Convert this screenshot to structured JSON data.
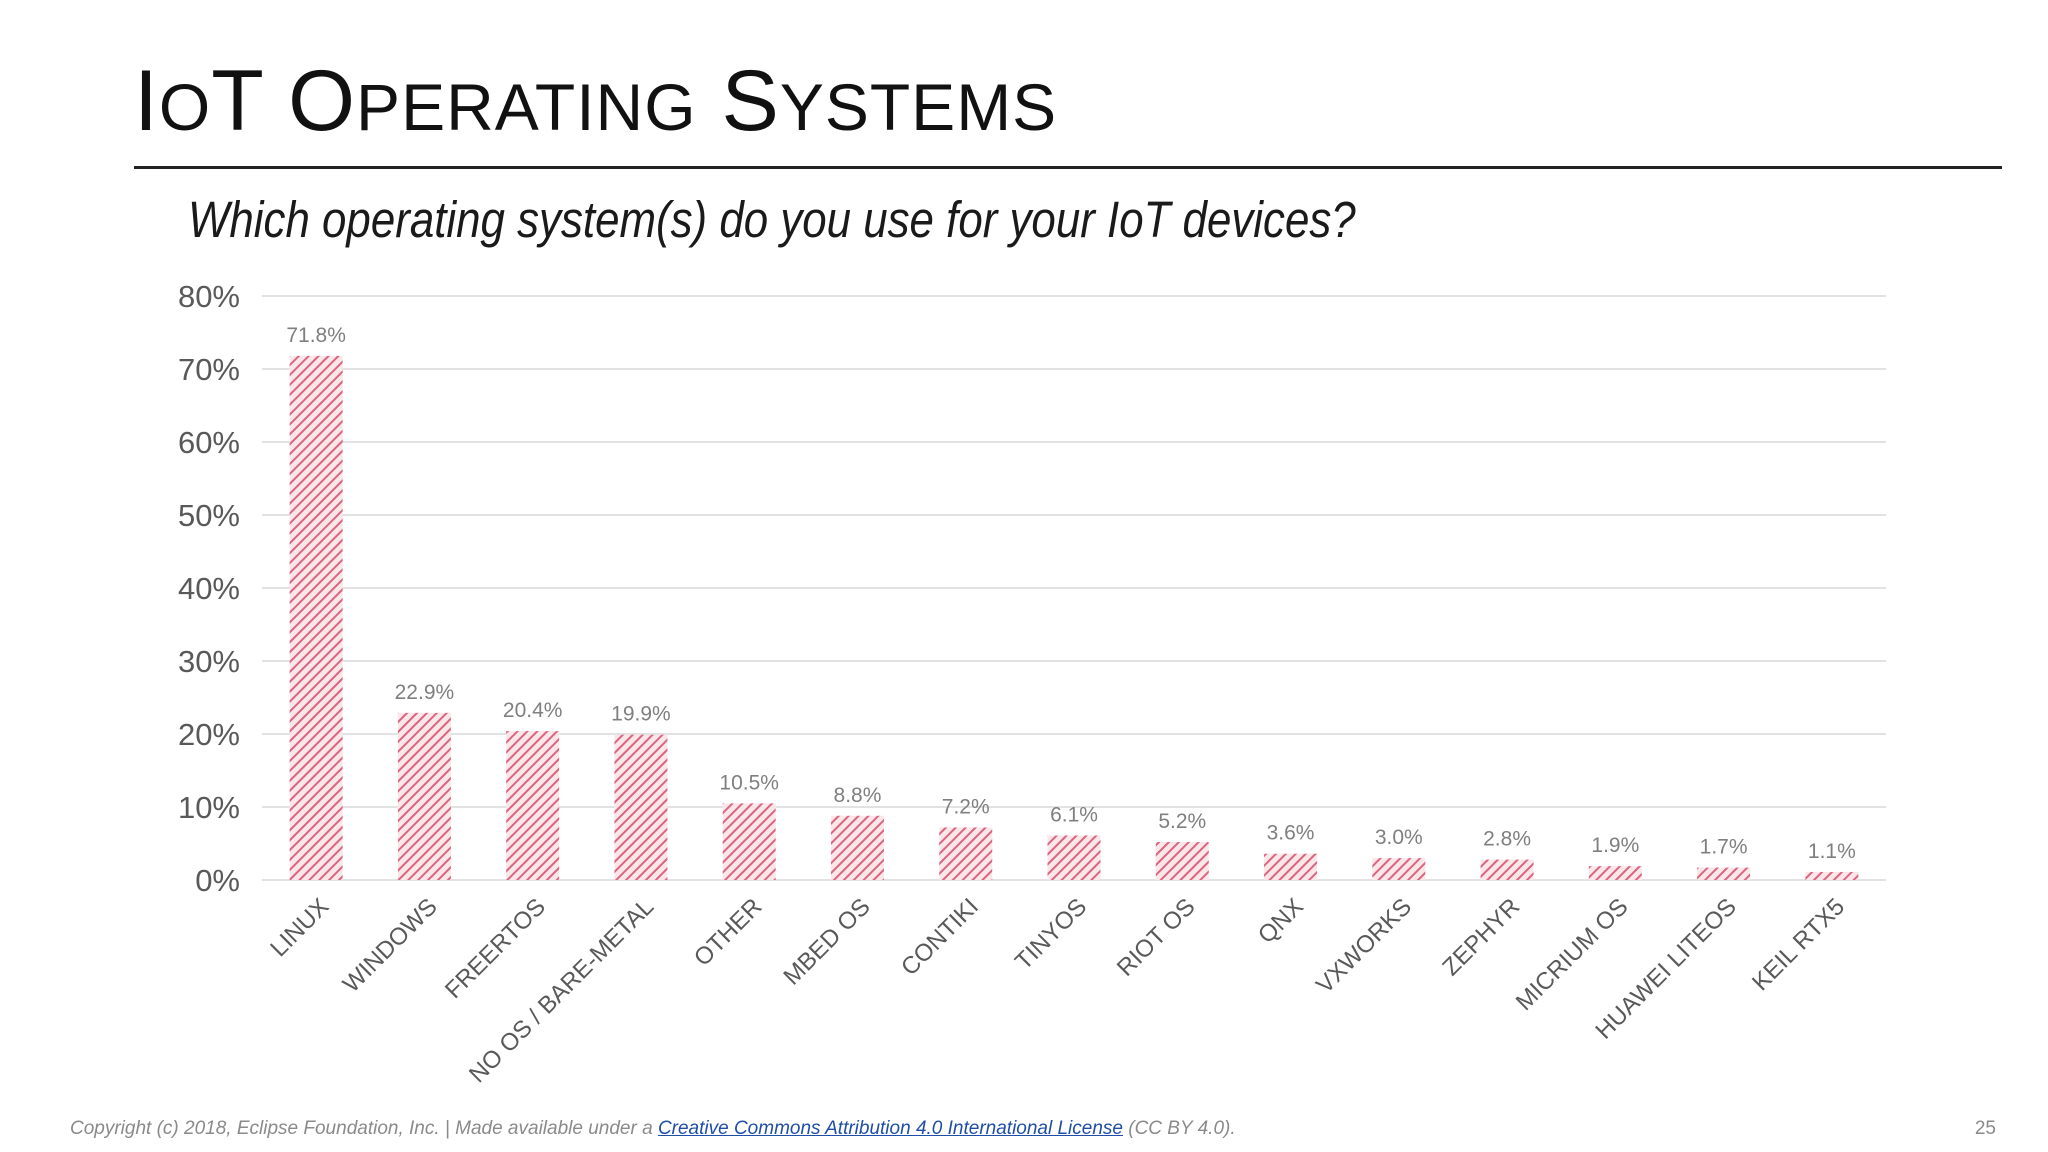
{
  "slide": {
    "title_first": "I",
    "title_first_rest": "O",
    "title_first_tail": "T",
    "title_second": "O",
    "title_second_rest": "PERATING",
    "title_third": "S",
    "title_third_rest": "YSTEMS"
  },
  "question": "Which operating system(s) do you use for your IoT devices?",
  "footer": {
    "prefix": "Copyright (c) 2018, Eclipse Foundation, Inc. | Made available under a ",
    "link_text": "Creative Commons Attribution 4.0 International License",
    "suffix": " (CC BY 4.0).",
    "page_number": "25"
  },
  "colors": {
    "bar_stroke": "#d9667e",
    "bar_fill_light": "#fbe6ea",
    "grid": "#d9d9d9",
    "axis_text": "#595959",
    "data_label": "#7f7f7f"
  },
  "chart_data": {
    "type": "bar",
    "title": "Which operating system(s) do you use for your IoT devices?",
    "categories": [
      "LINUX",
      "WINDOWS",
      "FREERTOS",
      "NO OS / BARE-METAL",
      "OTHER",
      "MBED OS",
      "CONTIKI",
      "TINYOS",
      "RIOT OS",
      "QNX",
      "VXWORKS",
      "ZEPHYR",
      "MICRIUM OS",
      "HUAWEI LITEOS",
      "KEIL RTX5"
    ],
    "values": [
      71.8,
      22.9,
      20.4,
      19.9,
      10.5,
      8.8,
      7.2,
      6.1,
      5.2,
      3.6,
      3.0,
      2.8,
      1.9,
      1.7,
      1.1
    ],
    "value_labels": [
      "71.8%",
      "22.9%",
      "20.4%",
      "19.9%",
      "10.5%",
      "8.8%",
      "7.2%",
      "6.1%",
      "5.2%",
      "3.6%",
      "3.0%",
      "2.8%",
      "1.9%",
      "1.7%",
      "1.1%"
    ],
    "ylim": [
      0,
      80
    ],
    "yticks": [
      "0%",
      "10%",
      "20%",
      "30%",
      "40%",
      "50%",
      "60%",
      "70%",
      "80%"
    ],
    "ytick_values": [
      0,
      10,
      20,
      30,
      40,
      50,
      60,
      70,
      80
    ],
    "xlabel": "",
    "ylabel": "",
    "grid": true,
    "legend": "none"
  }
}
